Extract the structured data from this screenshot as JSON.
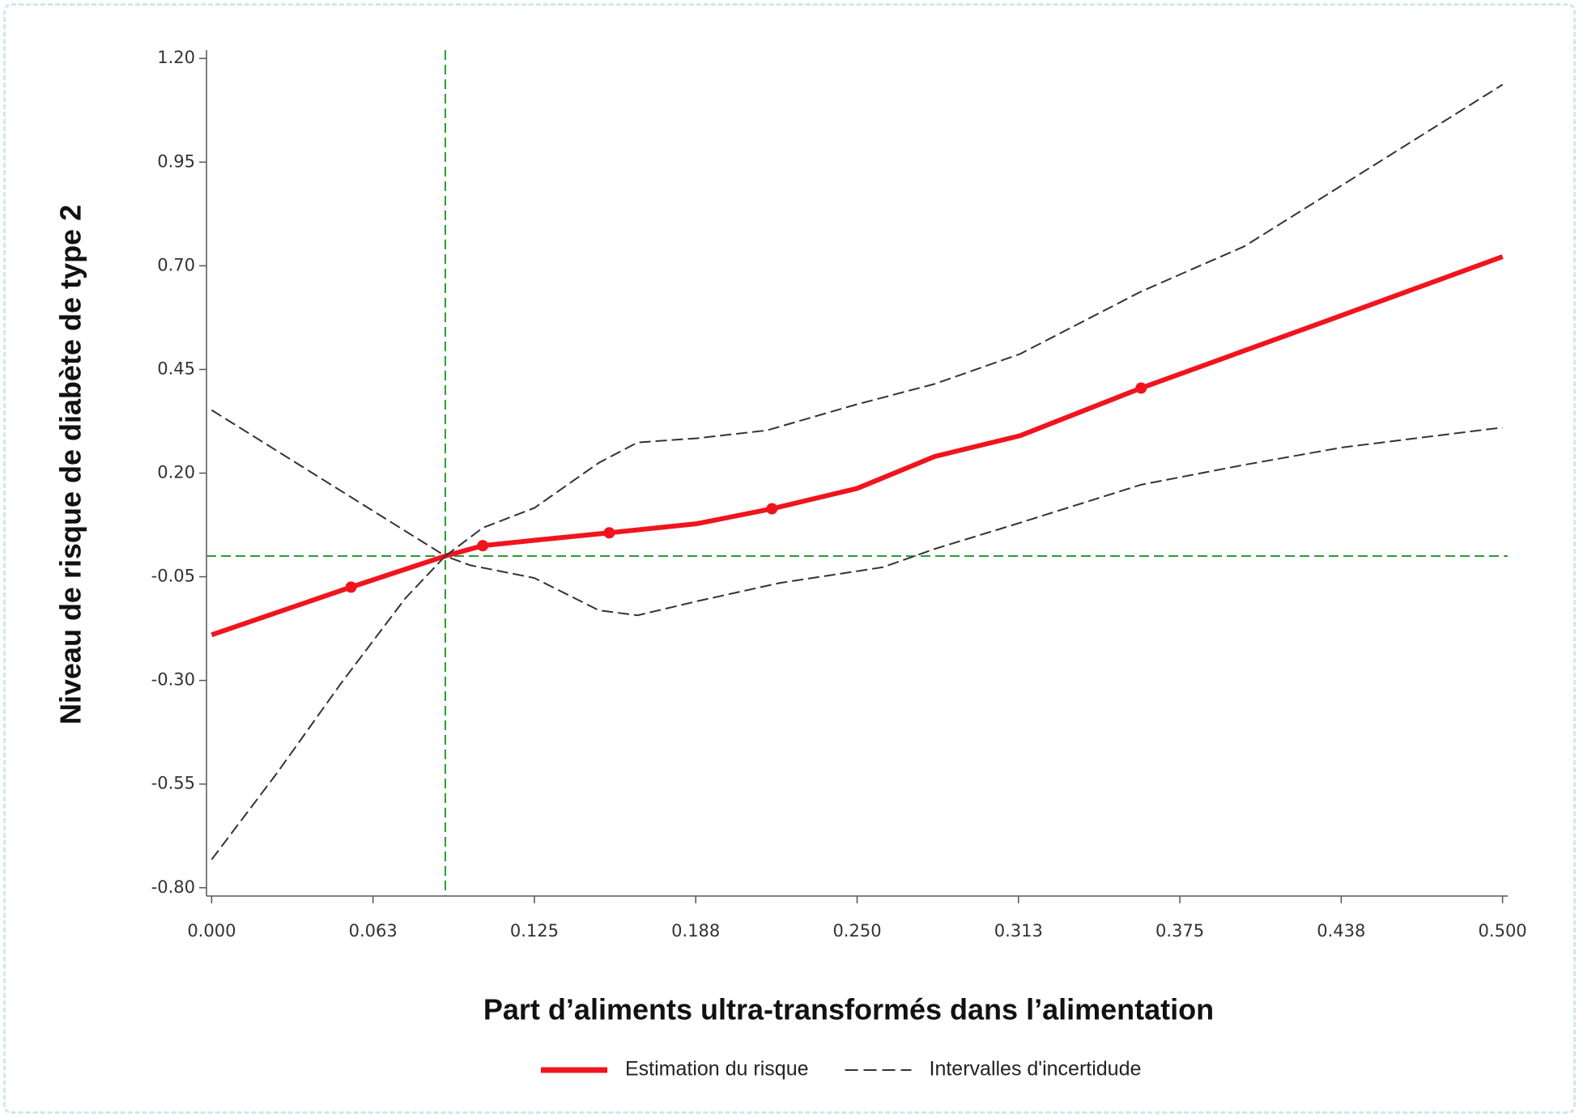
{
  "chart_data": {
    "type": "line",
    "x_label": "Part d’aliments ultra-transformés dans l’alimentation",
    "y_label": "Niveau de risque de diabète de type 2",
    "xlim": [
      -0.002,
      0.502
    ],
    "ylim": [
      -0.82,
      1.22
    ],
    "xticks": [
      {
        "value": 0,
        "label": "0.000"
      },
      {
        "value": 0.0625,
        "label": "0.063"
      },
      0.125,
      {
        "value": 0.1875,
        "label": "0.188"
      },
      {
        "value": 0.25,
        "label": "0.250"
      },
      {
        "value": 0.3125,
        "label": "0.313"
      },
      0.375,
      {
        "value": 0.4375,
        "label": "0.438"
      },
      {
        "value": 0.5,
        "label": "0.500"
      }
    ],
    "yticks": [
      {
        "value": 1.2,
        "label": "1.20"
      },
      0.95,
      {
        "value": 0.7,
        "label": "0.70"
      },
      0.45,
      {
        "value": 0.2,
        "label": "0.20"
      },
      -0.05,
      {
        "value": -0.3,
        "label": "-0.30"
      },
      -0.55,
      {
        "value": -0.8,
        "label": "-0.80"
      }
    ],
    "reference_lines": {
      "x": 0.0905,
      "y": 0,
      "color": "#2e9a2e"
    },
    "legend": "bottom",
    "series": [
      {
        "name": "Estimation du risque",
        "color": "#f0141e",
        "dash": "solid",
        "x": [
          0,
          0.054,
          0.0905,
          0.105,
          0.125,
          0.154,
          0.188,
          0.217,
          0.25,
          0.28,
          0.313,
          0.36,
          0.43,
          0.5
        ],
        "values": [
          -0.19,
          -0.075,
          0,
          0.025,
          0.038,
          0.056,
          0.078,
          0.114,
          0.163,
          0.24,
          0.29,
          0.405,
          0.563,
          0.722
        ],
        "knots": {
          "x": [
            0.054,
            0.105,
            0.154,
            0.217,
            0.36
          ],
          "values": [
            -0.075,
            0.025,
            0.056,
            0.114,
            0.405
          ]
        }
      },
      {
        "name": "Intervalles d'incertidude",
        "color": "#333333",
        "dash": "dashed",
        "x": [
          0,
          0.0905,
          0.105,
          0.125,
          0.15,
          0.165,
          0.188,
          0.215,
          0.25,
          0.28,
          0.313,
          0.36,
          0.4,
          0.438,
          0.5
        ],
        "values": [
          0.352,
          0,
          0.068,
          0.116,
          0.225,
          0.274,
          0.284,
          0.303,
          0.366,
          0.415,
          0.487,
          0.638,
          0.747,
          0.895,
          1.137
        ]
      },
      {
        "color": "#333333",
        "dash": "dashed",
        "x": [
          0,
          0.025,
          0.05,
          0.075,
          0.0905,
          0.1,
          0.125,
          0.15,
          0.165,
          0.188,
          0.22,
          0.26,
          0.28,
          0.313,
          0.36,
          0.4,
          0.438,
          0.5
        ],
        "values": [
          -0.732,
          -0.526,
          -0.308,
          -0.102,
          0,
          -0.022,
          -0.053,
          -0.131,
          -0.143,
          -0.109,
          -0.065,
          -0.027,
          0.017,
          0.08,
          0.172,
          0.22,
          0.262,
          0.31
        ]
      }
    ]
  }
}
